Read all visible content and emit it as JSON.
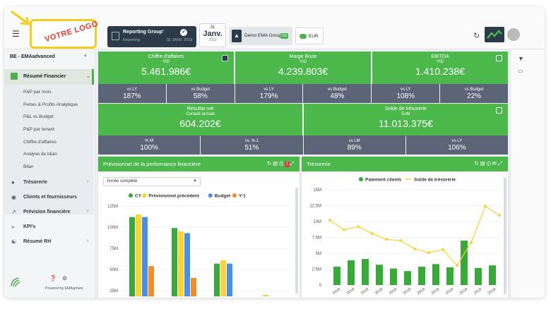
{
  "header": {
    "logo_text": "VOTRE LOGO",
    "report_title": "Reporting Group'",
    "report_subtitle": "Reporting",
    "report_date": "31 JANV. 2019",
    "calendar_day": "31",
    "calendar_month": "Janv.",
    "calendar_year": "2019",
    "group_label": "Demo EMA Group",
    "group_badge": "GS",
    "currency": "EUR"
  },
  "sidebar": {
    "entity": "BE - EMAadvanced",
    "active_menu": "Résumé Financier",
    "subitems": [
      "P&P par mois",
      "Pertes & Profits Analytique",
      "P&L vs Budget",
      "P&P par tenant",
      "Chiffre d'affaires",
      "Analyse de bilan",
      "Bilan"
    ],
    "menu": [
      {
        "label": "Trésorerie",
        "icon": "coins-icon",
        "caret": true
      },
      {
        "label": "Clients et fournisseurs",
        "icon": "users-icon",
        "caret": false
      },
      {
        "label": "Prévision financière",
        "icon": "trend-icon",
        "caret": true
      },
      {
        "label": "KPI's",
        "icon": "double-chevron-icon",
        "caret": false
      },
      {
        "label": "Résumé RH",
        "icon": "people-icon",
        "caret": true
      }
    ],
    "powered_by": "Powered by EMAsphere"
  },
  "kpis": {
    "row1": [
      {
        "title": "Chiffre d'affaires",
        "sub": "YtD",
        "value": "5.461.986€"
      },
      {
        "title": "Marge Brute",
        "sub": "YtD",
        "value": "4.239.803€"
      },
      {
        "title": "EBITDA",
        "sub": "YtD",
        "value": "1.410.238€"
      }
    ],
    "row1_cmp": [
      {
        "label": "vs LY",
        "value": "187%"
      },
      {
        "label": "vs Budget",
        "value": "58%"
      },
      {
        "label": "vs LY",
        "value": "179%"
      },
      {
        "label": "vs Budget",
        "value": "48%"
      },
      {
        "label": "vs LY",
        "value": "108%"
      },
      {
        "label": "vs Budget",
        "value": "22%"
      }
    ],
    "row2": [
      {
        "title": "Résultat net",
        "sub": "Cumulé annuel",
        "value": "604.202€"
      },
      {
        "title": "Solde de trésorerie",
        "sub": "EoM",
        "value": "11.013.375€"
      }
    ],
    "row2_cmp": [
      {
        "label": "% M",
        "value": "100%"
      },
      {
        "label": "vs. N-1",
        "value": "51%"
      },
      {
        "label": "vs LM",
        "value": "89%"
      },
      {
        "label": "vs LY",
        "value": "106%"
      }
    ]
  },
  "panel_left": {
    "title": "Prévisionnel de la performance financière",
    "badge": "1",
    "select": "Année complète"
  },
  "panel_right": {
    "title": "Trésorerie"
  },
  "chart_data": [
    {
      "type": "bar",
      "series": [
        {
          "name": "CY",
          "color": "#3aa83a",
          "values": [
            112,
            99,
            57,
            17
          ]
        },
        {
          "name": "Prévisionnel précédent",
          "color": "#f9d23c",
          "values": [
            115,
            95,
            61,
            20
          ]
        },
        {
          "name": "Budget",
          "color": "#4a90e2",
          "values": [
            112,
            93,
            57,
            16
          ]
        },
        {
          "name": "Y-1",
          "color": "#f28c28",
          "values": [
            54,
            40,
            16,
            0
          ]
        }
      ],
      "yticks": [
        "125M",
        "100M",
        "75M",
        "50M",
        "25M"
      ],
      "ylim": [
        0,
        125
      ],
      "legend": "top"
    },
    {
      "type": "bar",
      "series": [
        {
          "name": "Paiement clients",
          "color": "#3aa83a",
          "values": [
            2.9,
            3.9,
            4.1,
            3.2,
            2.6,
            2.2,
            2.9,
            3.3,
            2.8,
            7.0,
            2.7,
            3.1
          ]
        },
        {
          "name": "Solde de trésorerie",
          "color": "#f9d23c",
          "type": "line",
          "values": [
            10.2,
            8.7,
            9.2,
            8.1,
            7.2,
            7.0,
            5.7,
            5.1,
            5.6,
            3.1,
            6.7,
            12.4,
            11.0
          ]
        }
      ],
      "yticks": [
        "15M",
        "12.5M",
        "10M",
        "7.5M",
        "5M",
        "2.5M",
        "0"
      ],
      "ylim": [
        0,
        15
      ],
      "x_tick": "2018",
      "legend": "top"
    }
  ]
}
